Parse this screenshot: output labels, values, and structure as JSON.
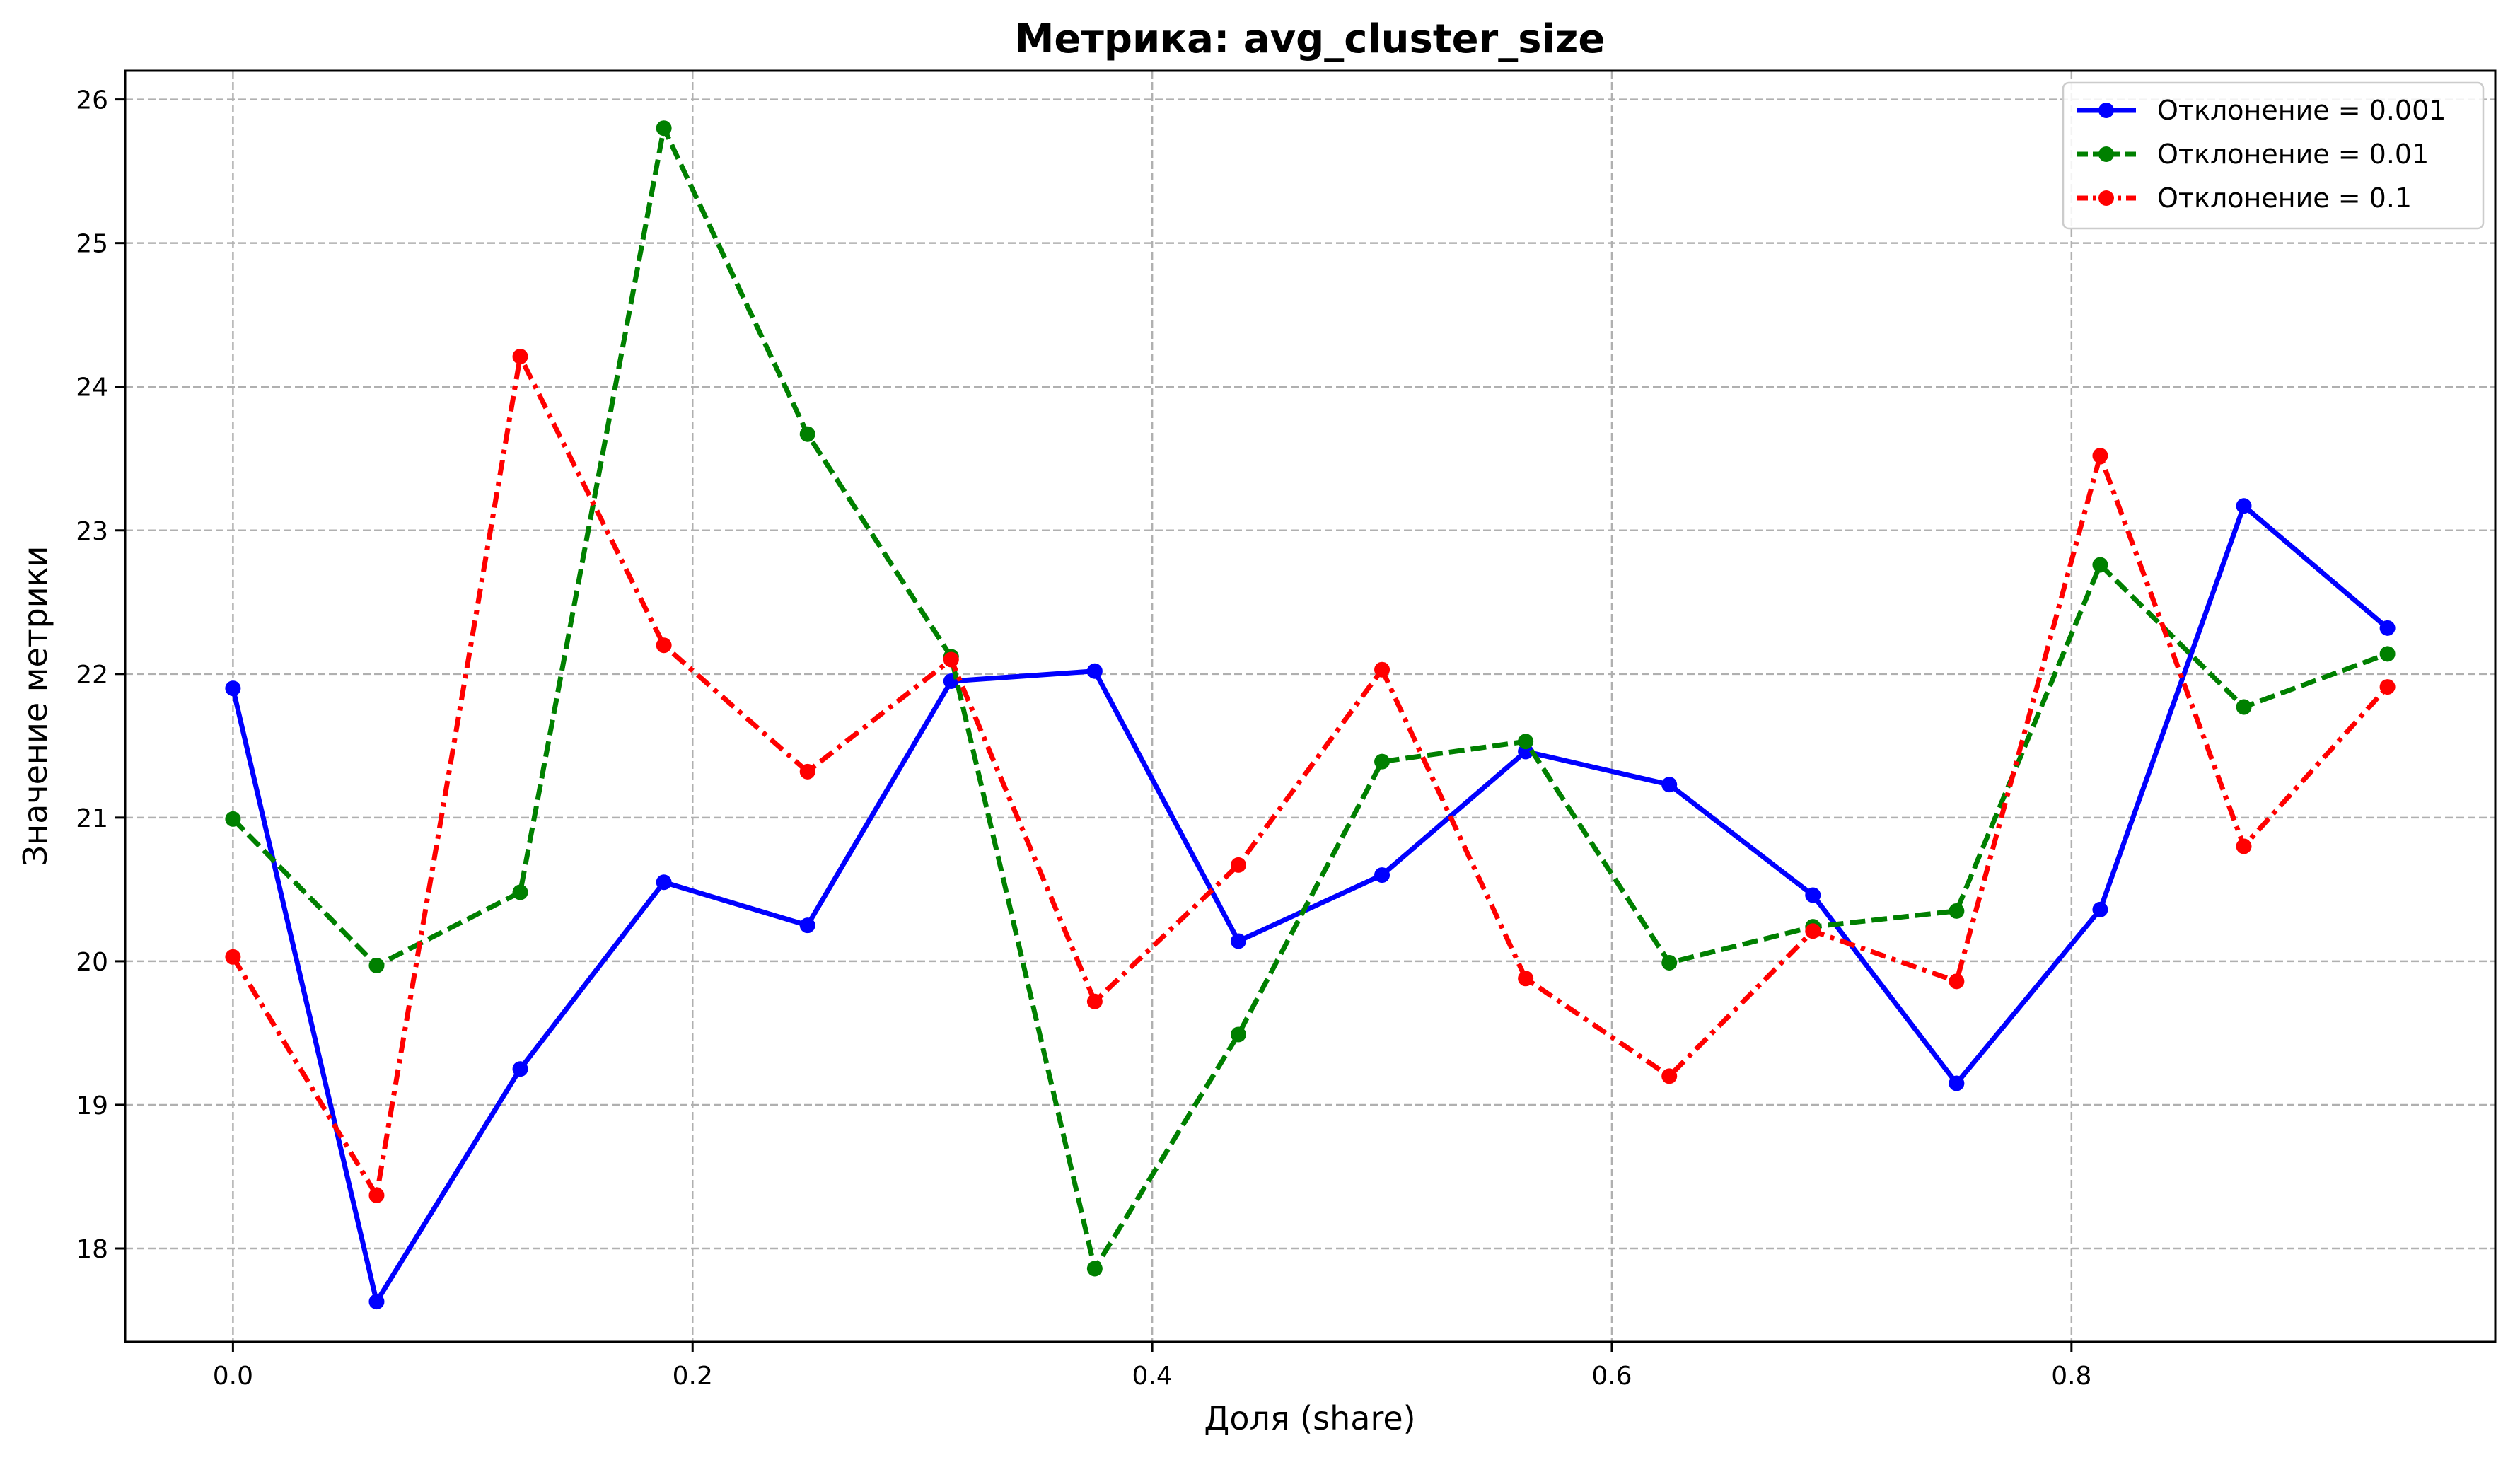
{
  "chart_data": {
    "type": "line",
    "title": "Метрика: avg_cluster_size",
    "xlabel": "Доля (share)",
    "ylabel": "Значение метрики",
    "xlim": [
      -0.0469,
      0.9844
    ],
    "ylim": [
      17.35,
      26.2
    ],
    "x_ticks": [
      0.0,
      0.2,
      0.4,
      0.6,
      0.8
    ],
    "x_tick_labels": [
      "0.0",
      "0.2",
      "0.4",
      "0.6",
      "0.8"
    ],
    "y_ticks": [
      18,
      19,
      20,
      21,
      22,
      23,
      24,
      25,
      26
    ],
    "y_tick_labels": [
      "18",
      "19",
      "20",
      "21",
      "22",
      "23",
      "24",
      "25",
      "26"
    ],
    "grid": true,
    "legend_position": "top-right",
    "x": [
      0.0,
      0.0625,
      0.125,
      0.1875,
      0.25,
      0.3125,
      0.375,
      0.4375,
      0.5,
      0.5625,
      0.625,
      0.6875,
      0.75,
      0.8125,
      0.875,
      0.9375
    ],
    "series": [
      {
        "name": "Отклонение = 0.001",
        "color": "#0000ff",
        "line_style": "solid",
        "values": [
          21.9,
          17.63,
          19.25,
          20.55,
          20.25,
          21.95,
          22.02,
          20.14,
          20.6,
          21.46,
          21.23,
          20.46,
          19.15,
          20.36,
          23.17,
          22.32
        ]
      },
      {
        "name": "Отклонение = 0.01",
        "color": "#008000",
        "line_style": "dashed",
        "values": [
          20.99,
          19.97,
          20.48,
          25.8,
          23.67,
          22.12,
          17.86,
          19.49,
          21.39,
          21.53,
          19.99,
          20.24,
          20.35,
          22.76,
          21.77,
          22.14
        ]
      },
      {
        "name": "Отклонение = 0.1",
        "color": "#ff0000",
        "line_style": "dashdot",
        "values": [
          20.03,
          18.37,
          24.21,
          22.2,
          21.32,
          22.1,
          19.72,
          20.67,
          22.03,
          19.88,
          19.2,
          20.21,
          19.86,
          23.52,
          20.8,
          21.91
        ]
      }
    ]
  }
}
